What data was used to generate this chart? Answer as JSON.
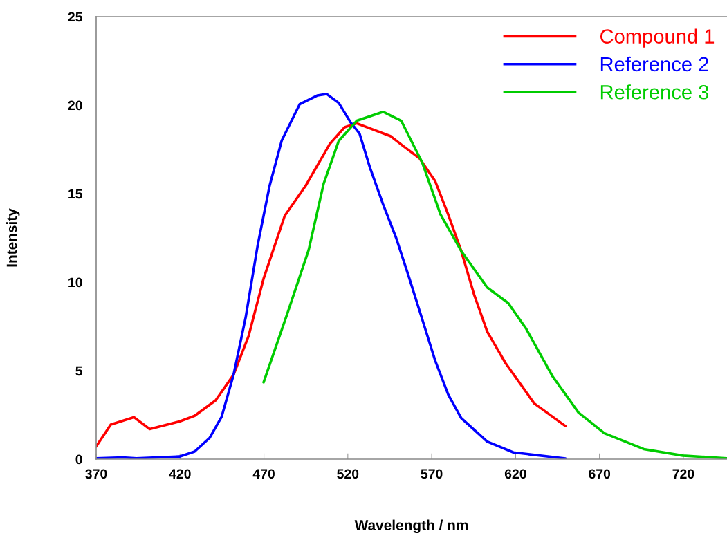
{
  "chart_data": {
    "type": "line",
    "xlabel": "Wavelength / nm",
    "ylabel": "Intensity",
    "xlim": [
      370,
      746
    ],
    "xticks": [
      370,
      420,
      470,
      520,
      570,
      620,
      670,
      720
    ],
    "ylim": [
      0,
      25
    ],
    "yticks": [
      0,
      5,
      10,
      15,
      20,
      25
    ],
    "grid": false,
    "legend": "top right",
    "marker": "none",
    "line_style": "solid",
    "series": [
      {
        "name": "Compound 1",
        "color": "#ff0000",
        "x": [
          370,
          378.7,
          392.6,
          401.9,
          419.7,
          428.7,
          441.2,
          451.9,
          460.9,
          469.8,
          482.4,
          494.9,
          509.2,
          518.1,
          525.3,
          545.6,
          553.4,
          562.7,
          572.1,
          579.9,
          587.6,
          595.4,
          603.1,
          614,
          631.1,
          649.7
        ],
        "values": [
          0.71,
          1.95,
          2.37,
          1.7,
          2.13,
          2.45,
          3.32,
          4.77,
          6.97,
          10.2,
          13.75,
          15.45,
          17.8,
          18.75,
          18.97,
          18.24,
          17.66,
          17.0,
          15.7,
          13.8,
          11.76,
          9.26,
          7.2,
          5.43,
          3.15,
          1.87
        ]
      },
      {
        "name": "Reference 2",
        "color": "#0000ff",
        "x": [
          370,
          385.8,
          394,
          419.7,
          428.7,
          437.6,
          444.8,
          451.9,
          459.1,
          466.3,
          473.4,
          480.6,
          491.3,
          502,
          507.4,
          514.6,
          521.7,
          527,
          533.2,
          541,
          548.8,
          556.5,
          564.3,
          572.1,
          579.9,
          587.6,
          603.1,
          618.7,
          649.7
        ],
        "values": [
          0.05,
          0.1,
          0.05,
          0.15,
          0.43,
          1.2,
          2.4,
          4.77,
          8.0,
          12.1,
          15.45,
          18.0,
          20.05,
          20.55,
          20.63,
          20.12,
          19.02,
          18.39,
          16.47,
          14.4,
          12.5,
          10.27,
          7.92,
          5.56,
          3.64,
          2.32,
          0.99,
          0.38,
          0.04
        ]
      },
      {
        "name": "Reference 3",
        "color": "#00cc00",
        "x": [
          469.8,
          484.1,
          496.7,
          505.6,
          514.6,
          525.4,
          541,
          551.8,
          564.3,
          575.2,
          587.6,
          603.1,
          615.6,
          626.4,
          641.9,
          657.5,
          673,
          696.4,
          719.7,
          745.8
        ],
        "values": [
          4.34,
          8.27,
          11.83,
          15.56,
          17.98,
          19.12,
          19.62,
          19.12,
          16.77,
          13.83,
          11.76,
          9.7,
          8.82,
          7.35,
          4.7,
          2.63,
          1.46,
          0.57,
          0.2,
          0.05
        ]
      }
    ]
  }
}
